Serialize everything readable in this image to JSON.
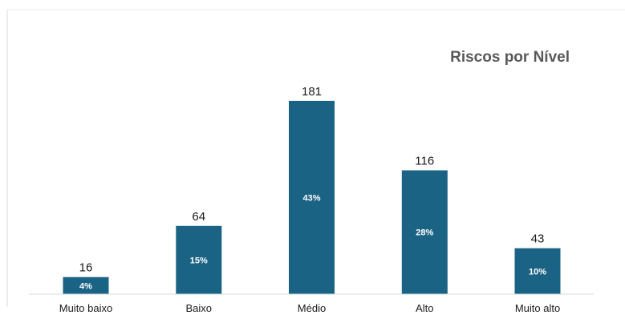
{
  "chart_data": {
    "type": "bar",
    "title": "Riscos por Nível",
    "categories": [
      "Muito baixo",
      "Baixo",
      "Médio",
      "Alto",
      "Muito alto"
    ],
    "values": [
      16,
      64,
      181,
      116,
      43
    ],
    "percent_labels": [
      "4%",
      "15%",
      "43%",
      "28%",
      "10%"
    ],
    "xlabel": "",
    "ylabel": "",
    "ylim": [
      0,
      200
    ],
    "grid": false,
    "legend": "none",
    "bar_color": "#1b6384",
    "axis_color": "#d9d9d9",
    "frame_color": "#e6e6e6"
  }
}
